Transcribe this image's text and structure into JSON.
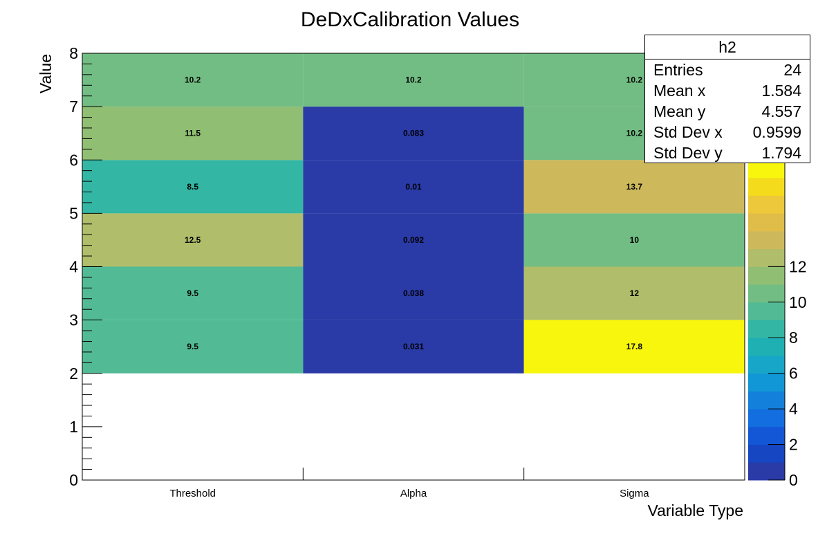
{
  "chart_data": {
    "type": "heatmap",
    "title": "DeDxCalibration Values",
    "xlabel": "Variable Type",
    "ylabel": "Value",
    "categories": [
      "Threshold",
      "Alpha",
      "Sigma"
    ],
    "ylim": [
      0,
      8
    ],
    "y_ticks": [
      "0",
      "1",
      "2",
      "3",
      "4",
      "5",
      "6",
      "7",
      "8"
    ],
    "cells": [
      {
        "x": "Threshold",
        "y_range": [
          2,
          3
        ],
        "value": 9.5,
        "label": "9.5"
      },
      {
        "x": "Threshold",
        "y_range": [
          3,
          4
        ],
        "value": 9.5,
        "label": "9.5"
      },
      {
        "x": "Threshold",
        "y_range": [
          4,
          5
        ],
        "value": 12.5,
        "label": "12.5"
      },
      {
        "x": "Threshold",
        "y_range": [
          5,
          6
        ],
        "value": 8.5,
        "label": "8.5"
      },
      {
        "x": "Threshold",
        "y_range": [
          6,
          7
        ],
        "value": 11.5,
        "label": "11.5"
      },
      {
        "x": "Threshold",
        "y_range": [
          7,
          8
        ],
        "value": 10.2,
        "label": "10.2"
      },
      {
        "x": "Alpha",
        "y_range": [
          2,
          3
        ],
        "value": 0.031,
        "label": "0.031"
      },
      {
        "x": "Alpha",
        "y_range": [
          3,
          4
        ],
        "value": 0.038,
        "label": "0.038"
      },
      {
        "x": "Alpha",
        "y_range": [
          4,
          5
        ],
        "value": 0.092,
        "label": "0.092"
      },
      {
        "x": "Alpha",
        "y_range": [
          5,
          6
        ],
        "value": 0.01,
        "label": "0.01"
      },
      {
        "x": "Alpha",
        "y_range": [
          6,
          7
        ],
        "value": 0.083,
        "label": "0.083"
      },
      {
        "x": "Alpha",
        "y_range": [
          7,
          8
        ],
        "value": 10.2,
        "label": "10.2"
      },
      {
        "x": "Sigma",
        "y_range": [
          2,
          3
        ],
        "value": 17.8,
        "label": "17.8"
      },
      {
        "x": "Sigma",
        "y_range": [
          3,
          4
        ],
        "value": 12,
        "label": "12"
      },
      {
        "x": "Sigma",
        "y_range": [
          4,
          5
        ],
        "value": 10,
        "label": "10"
      },
      {
        "x": "Sigma",
        "y_range": [
          5,
          6
        ],
        "value": 13.7,
        "label": "13.7"
      },
      {
        "x": "Sigma",
        "y_range": [
          6,
          7
        ],
        "value": 10.2,
        "label": "10.2"
      },
      {
        "x": "Sigma",
        "y_range": [
          7,
          8
        ],
        "value": 10.2,
        "label": "10.2"
      }
    ],
    "colorbar": {
      "range": [
        0,
        18
      ],
      "tick_labels": [
        "0",
        "2",
        "4",
        "6",
        "8",
        "10",
        "12"
      ],
      "palette": [
        "#2a3aa6",
        "#1746c2",
        "#1357d6",
        "#136ee0",
        "#1380dc",
        "#1196d6",
        "#17a6c8",
        "#1fb0b4",
        "#33b7a4",
        "#52bb95",
        "#72bd83",
        "#90be73",
        "#b0bd6a",
        "#cdb95c",
        "#e0bc49",
        "#ecc83a",
        "#f4dc1c",
        "#f7f60c"
      ]
    },
    "stats_box": {
      "title": "h2",
      "rows": [
        {
          "label": "Entries",
          "value": "24"
        },
        {
          "label": "Mean x",
          "value": "1.584"
        },
        {
          "label": "Mean y",
          "value": "4.557"
        },
        {
          "label": "Std Dev x",
          "value": "0.9599"
        },
        {
          "label": "Std Dev y",
          "value": "1.794"
        }
      ]
    }
  }
}
